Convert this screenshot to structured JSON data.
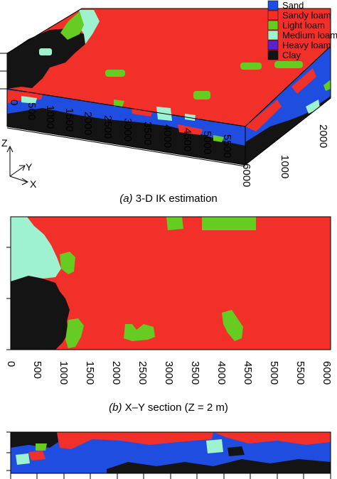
{
  "colors": {
    "sand": "#1f4de0",
    "sandy_loam": "#f2302a",
    "light_loam": "#66cc22",
    "medium_loam": "#9ff2d0",
    "heavy_loam": "#5b22c9",
    "clay": "#141414"
  },
  "legend": {
    "items": [
      {
        "label": "Sand",
        "color_key": "sand"
      },
      {
        "label": "Sandy loam",
        "color_key": "sandy_loam"
      },
      {
        "label": "Light loam",
        "color_key": "light_loam"
      },
      {
        "label": "Medium loam",
        "color_key": "medium_loam"
      },
      {
        "label": "Heavy loam",
        "color_key": "heavy_loam"
      },
      {
        "label": "Clay",
        "color_key": "clay"
      }
    ]
  },
  "panel_a": {
    "caption_tag": "(a)",
    "caption_text": " 3-D IK estimation",
    "x_ticks": [
      "0",
      "500",
      "1000",
      "1500",
      "2000",
      "2500",
      "3000",
      "3500",
      "4000",
      "4500",
      "5000",
      "5500",
      "6000"
    ],
    "y_ticks": [
      "1000",
      "2000"
    ],
    "axes": {
      "z": "Z",
      "y": "Y",
      "x": "X"
    }
  },
  "panel_b": {
    "caption_tag": "(b)",
    "caption_text": " X–Y section (Z = 2 m)",
    "x_ticks": [
      "0",
      "500",
      "1000",
      "1500",
      "2000",
      "2500",
      "3000",
      "3500",
      "4000",
      "4500",
      "5000",
      "5500",
      "6000"
    ]
  }
}
